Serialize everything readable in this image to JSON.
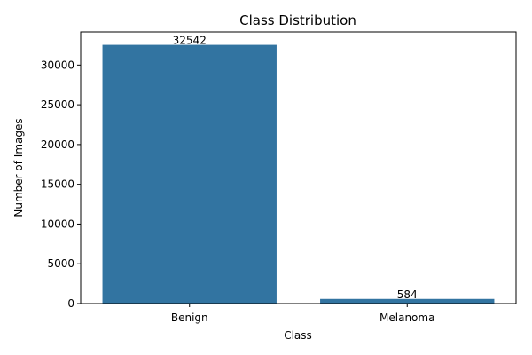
{
  "chart_data": {
    "type": "bar",
    "title": "Class Distribution",
    "xlabel": "Class",
    "ylabel": "Number of Images",
    "categories": [
      "Benign",
      "Melanoma"
    ],
    "values": [
      32542,
      584
    ],
    "data_labels": [
      "32542",
      "584"
    ],
    "yticks": [
      0,
      5000,
      10000,
      15000,
      20000,
      25000,
      30000
    ],
    "ylim": [
      0,
      34170
    ],
    "grid": false,
    "legend": "none",
    "bar_color": "#3274a1"
  }
}
